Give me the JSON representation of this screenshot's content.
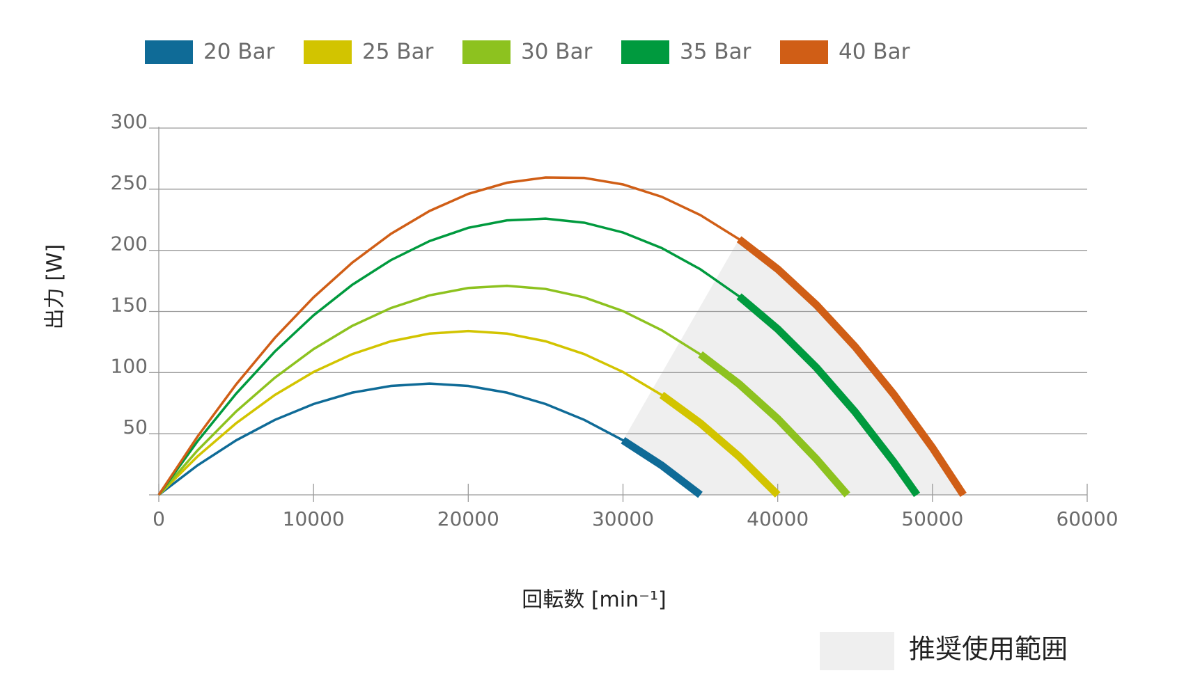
{
  "chart_data": {
    "type": "line",
    "x_label": "回転数 [min⁻¹]",
    "y_label": "出力 [W]",
    "region_label": "推奨使用範囲",
    "region_color": "#efefef",
    "xlim": [
      0,
      60000
    ],
    "xticks": [
      0,
      10000,
      20000,
      30000,
      40000,
      50000,
      60000
    ],
    "ylim": [
      0,
      300
    ],
    "yticks": [
      50,
      100,
      150,
      200,
      250,
      300
    ],
    "grid": true,
    "series": [
      {
        "name": "20 Bar",
        "color": "#0f6b97",
        "recommended_range": [
          30000,
          35000
        ],
        "x": [
          0,
          2500,
          5000,
          7500,
          10000,
          12500,
          15000,
          17500,
          20000,
          22500,
          25000,
          27500,
          30000,
          32500,
          35000
        ],
        "values": [
          0,
          24.1,
          44.6,
          61.3,
          74.3,
          83.6,
          89.1,
          91,
          89.1,
          83.6,
          74.3,
          61.3,
          44.6,
          24.1,
          0
        ]
      },
      {
        "name": "25 Bar",
        "color": "#d2c400",
        "recommended_range": [
          32500,
          40000
        ],
        "x": [
          0,
          2500,
          5000,
          7500,
          10000,
          12500,
          15000,
          17500,
          20000,
          22500,
          25000,
          27500,
          30000,
          32500,
          35000,
          37500,
          40000
        ],
        "values": [
          0,
          31.4,
          58.6,
          81.7,
          100.5,
          115.1,
          125.6,
          131.9,
          134,
          131.9,
          125.6,
          115.1,
          100.5,
          81.7,
          58.6,
          31.4,
          0
        ]
      },
      {
        "name": "30 Bar",
        "color": "#8dc21f",
        "recommended_range": [
          35000,
          44500
        ],
        "x": [
          0,
          2500,
          5000,
          7500,
          10000,
          12500,
          15000,
          17500,
          20000,
          22500,
          25000,
          27500,
          30000,
          32500,
          35000,
          37500,
          40000,
          42500,
          44500
        ],
        "values": [
          0,
          36.3,
          68.2,
          95.8,
          119.2,
          138.2,
          152.8,
          163.2,
          169.2,
          171,
          168.4,
          161.5,
          150.3,
          134.7,
          114.9,
          90.7,
          62.2,
          29.3,
          0
        ]
      },
      {
        "name": "35 Bar",
        "color": "#009a3e",
        "recommended_range": [
          37500,
          49000
        ],
        "x": [
          0,
          2500,
          5000,
          7500,
          10000,
          12500,
          15000,
          17500,
          20000,
          22500,
          25000,
          27500,
          30000,
          32500,
          35000,
          37500,
          40000,
          42500,
          45000,
          47500,
          49000
        ],
        "values": [
          0,
          43.8,
          82.8,
          117.2,
          146.8,
          171.8,
          192,
          207.6,
          218.4,
          224.5,
          225.9,
          222.6,
          214.6,
          201.9,
          184.5,
          162.4,
          135.6,
          104.1,
          67.8,
          26.8,
          0
        ]
      },
      {
        "name": "40 Bar",
        "color": "#d05e16",
        "recommended_range": [
          37500,
          52000
        ],
        "x": [
          0,
          2500,
          5000,
          7500,
          10000,
          12500,
          15000,
          17500,
          20000,
          22500,
          25000,
          27500,
          30000,
          32500,
          35000,
          37500,
          40000,
          42500,
          45000,
          47500,
          50000,
          52000
        ],
        "values": [
          0,
          47.6,
          90.4,
          128.4,
          161.5,
          189.9,
          213.5,
          232.2,
          246.2,
          255.3,
          259.6,
          259.2,
          253.9,
          243.8,
          228.8,
          209.1,
          184.6,
          155.3,
          121.2,
          82.2,
          38.5,
          0
        ]
      }
    ]
  }
}
